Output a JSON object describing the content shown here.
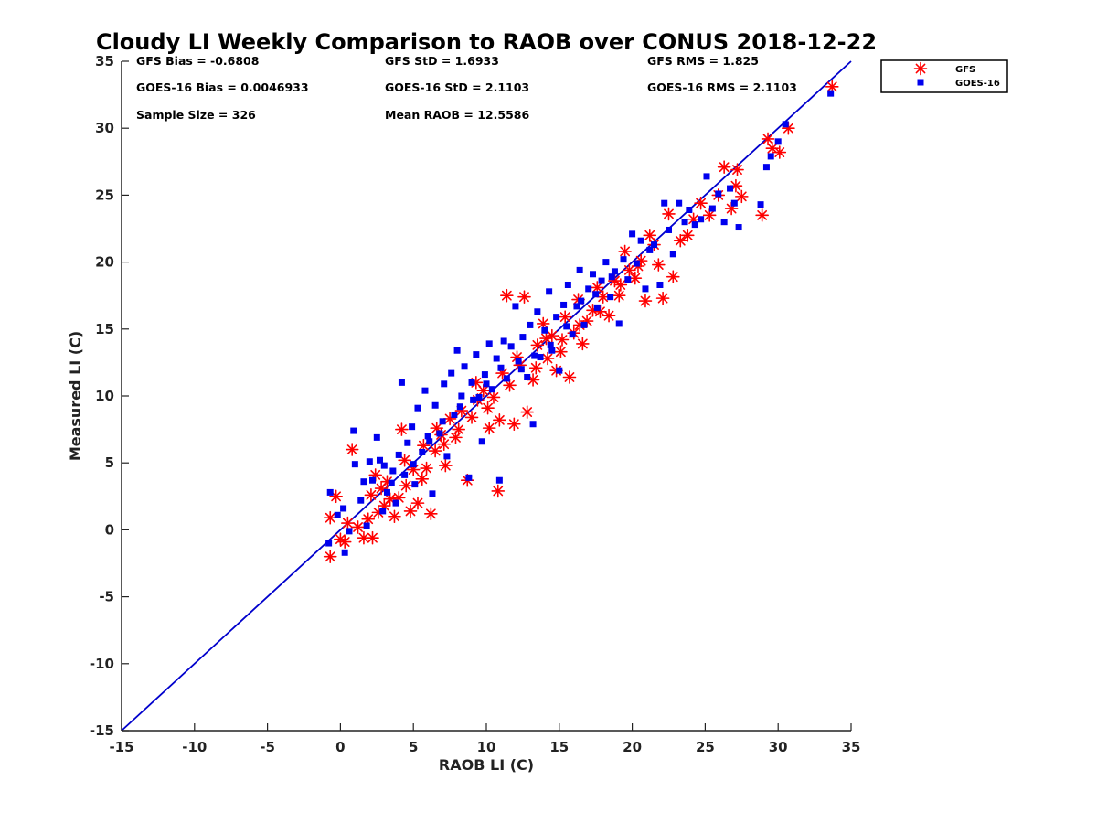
{
  "chart_data": {
    "type": "scatter",
    "title": "Cloudy LI Weekly Comparison to RAOB over CONUS 2018-12-22",
    "xlabel": "RAOB LI (C)",
    "ylabel": "Measured LI (C)",
    "xlim": [
      -15,
      35
    ],
    "ylim": [
      -15,
      35
    ],
    "xticks": [
      "-15",
      "-10",
      "-5",
      "0",
      "5",
      "10",
      "15",
      "20",
      "25",
      "30",
      "35"
    ],
    "yticks": [
      "-15",
      "-10",
      "-5",
      "0",
      "5",
      "10",
      "15",
      "20",
      "25",
      "30",
      "35"
    ],
    "grid": false,
    "legend_position": "outside-top-right",
    "reference_line": {
      "from": [
        -15,
        -15
      ],
      "to": [
        35,
        35
      ],
      "color": "#0000cc"
    },
    "stats": [
      {
        "text": "GFS Bias = -0.6808"
      },
      {
        "text": "GFS StD = 1.6933"
      },
      {
        "text": "GFS RMS = 1.825"
      },
      {
        "text": "GOES-16 Bias = 0.0046933"
      },
      {
        "text": "GOES-16 StD = 2.1103"
      },
      {
        "text": "GOES-16 RMS = 2.1103"
      },
      {
        "text": "Sample Size = 326"
      },
      {
        "text": "Mean RAOB = 12.5586"
      }
    ],
    "series": [
      {
        "name": "GFS",
        "marker": "asterisk",
        "color": "#ff0000",
        "points": [
          [
            -0.7,
            -2.0
          ],
          [
            -0.7,
            0.9
          ],
          [
            -0.3,
            2.5
          ],
          [
            0.0,
            -0.7
          ],
          [
            0.3,
            -0.9
          ],
          [
            0.5,
            0.5
          ],
          [
            0.8,
            6.0
          ],
          [
            1.2,
            0.2
          ],
          [
            1.6,
            -0.6
          ],
          [
            1.9,
            0.8
          ],
          [
            2.1,
            2.6
          ],
          [
            2.2,
            -0.6
          ],
          [
            2.6,
            1.3
          ],
          [
            2.8,
            3.1
          ],
          [
            3.0,
            1.8
          ],
          [
            3.4,
            2.3
          ],
          [
            3.7,
            1.0
          ],
          [
            4.0,
            2.4
          ],
          [
            4.2,
            7.5
          ],
          [
            4.5,
            3.3
          ],
          [
            4.8,
            1.4
          ],
          [
            5.0,
            4.5
          ],
          [
            5.3,
            2.0
          ],
          [
            5.6,
            3.8
          ],
          [
            5.9,
            4.6
          ],
          [
            6.2,
            1.2
          ],
          [
            6.5,
            5.9
          ],
          [
            6.9,
            7.1
          ],
          [
            7.2,
            4.8
          ],
          [
            7.5,
            8.3
          ],
          [
            7.9,
            6.9
          ],
          [
            8.3,
            8.9
          ],
          [
            8.7,
            3.7
          ],
          [
            9.0,
            8.4
          ],
          [
            9.4,
            9.7
          ],
          [
            9.8,
            10.4
          ],
          [
            10.2,
            7.6
          ],
          [
            10.5,
            9.9
          ],
          [
            10.8,
            2.9
          ],
          [
            10.9,
            8.2
          ],
          [
            11.4,
            17.5
          ],
          [
            11.6,
            10.8
          ],
          [
            11.9,
            7.9
          ],
          [
            12.3,
            12.3
          ],
          [
            12.6,
            17.4
          ],
          [
            12.8,
            8.8
          ],
          [
            13.2,
            11.2
          ],
          [
            13.5,
            13.8
          ],
          [
            13.9,
            15.4
          ],
          [
            14.2,
            12.8
          ],
          [
            14.5,
            14.5
          ],
          [
            14.8,
            11.9
          ],
          [
            15.1,
            13.3
          ],
          [
            15.4,
            15.9
          ],
          [
            15.7,
            11.4
          ],
          [
            16.0,
            14.7
          ],
          [
            16.3,
            17.2
          ],
          [
            16.6,
            13.9
          ],
          [
            16.9,
            15.6
          ],
          [
            17.3,
            16.4
          ],
          [
            17.6,
            18.1
          ],
          [
            18.0,
            17.4
          ],
          [
            18.4,
            16.0
          ],
          [
            18.8,
            18.6
          ],
          [
            19.1,
            17.5
          ],
          [
            19.5,
            20.8
          ],
          [
            19.8,
            19.4
          ],
          [
            20.2,
            18.8
          ],
          [
            20.6,
            20.1
          ],
          [
            20.9,
            17.1
          ],
          [
            21.2,
            22.0
          ],
          [
            21.8,
            19.8
          ],
          [
            22.1,
            17.3
          ],
          [
            22.5,
            23.6
          ],
          [
            22.8,
            18.9
          ],
          [
            23.3,
            21.6
          ],
          [
            23.8,
            22.0
          ],
          [
            24.2,
            23.2
          ],
          [
            24.7,
            24.4
          ],
          [
            25.3,
            23.5
          ],
          [
            25.9,
            25.0
          ],
          [
            26.3,
            27.1
          ],
          [
            26.8,
            24.0
          ],
          [
            27.1,
            25.7
          ],
          [
            27.2,
            26.9
          ],
          [
            27.5,
            24.9
          ],
          [
            28.9,
            23.5
          ],
          [
            29.3,
            29.2
          ],
          [
            29.6,
            28.5
          ],
          [
            30.1,
            28.2
          ],
          [
            30.7,
            30.0
          ],
          [
            33.7,
            33.1
          ],
          [
            2.4,
            4.1
          ],
          [
            3.2,
            3.6
          ],
          [
            4.4,
            5.2
          ],
          [
            5.7,
            6.3
          ],
          [
            6.6,
            7.6
          ],
          [
            7.1,
            6.4
          ],
          [
            8.1,
            7.5
          ],
          [
            9.3,
            11.0
          ],
          [
            10.1,
            9.1
          ],
          [
            11.1,
            11.7
          ],
          [
            12.1,
            12.9
          ],
          [
            13.4,
            12.1
          ],
          [
            14.1,
            14.3
          ],
          [
            15.2,
            14.2
          ],
          [
            16.4,
            15.3
          ],
          [
            17.8,
            16.3
          ],
          [
            19.2,
            18.3
          ],
          [
            20.4,
            19.7
          ],
          [
            21.5,
            21.3
          ]
        ]
      },
      {
        "name": "GOES-16",
        "marker": "square",
        "color": "#0000ee",
        "points": [
          [
            -0.8,
            -1.0
          ],
          [
            -0.7,
            2.8
          ],
          [
            -0.2,
            1.1
          ],
          [
            0.2,
            1.6
          ],
          [
            0.3,
            -1.7
          ],
          [
            0.6,
            -0.1
          ],
          [
            0.9,
            7.4
          ],
          [
            1.0,
            4.9
          ],
          [
            1.4,
            2.2
          ],
          [
            1.6,
            3.6
          ],
          [
            1.8,
            0.3
          ],
          [
            2.0,
            5.1
          ],
          [
            2.2,
            3.7
          ],
          [
            2.5,
            6.9
          ],
          [
            2.7,
            5.2
          ],
          [
            3.0,
            4.8
          ],
          [
            3.2,
            2.8
          ],
          [
            3.5,
            3.5
          ],
          [
            3.8,
            2.0
          ],
          [
            4.0,
            5.6
          ],
          [
            4.2,
            11.0
          ],
          [
            4.4,
            4.1
          ],
          [
            4.6,
            6.5
          ],
          [
            4.9,
            7.7
          ],
          [
            5.1,
            3.4
          ],
          [
            5.3,
            9.1
          ],
          [
            5.6,
            5.8
          ],
          [
            5.8,
            10.4
          ],
          [
            6.1,
            6.6
          ],
          [
            6.3,
            2.7
          ],
          [
            6.5,
            9.3
          ],
          [
            6.8,
            7.2
          ],
          [
            7.1,
            10.9
          ],
          [
            7.3,
            5.5
          ],
          [
            7.6,
            11.7
          ],
          [
            7.8,
            8.6
          ],
          [
            8.0,
            13.4
          ],
          [
            8.3,
            10.0
          ],
          [
            8.5,
            12.2
          ],
          [
            8.8,
            3.9
          ],
          [
            9.0,
            11.0
          ],
          [
            9.3,
            13.1
          ],
          [
            9.5,
            9.9
          ],
          [
            9.7,
            6.6
          ],
          [
            9.9,
            11.6
          ],
          [
            10.2,
            13.9
          ],
          [
            10.4,
            10.5
          ],
          [
            10.7,
            12.8
          ],
          [
            10.9,
            3.7
          ],
          [
            11.2,
            14.1
          ],
          [
            11.4,
            11.3
          ],
          [
            11.7,
            13.7
          ],
          [
            12.0,
            16.7
          ],
          [
            12.2,
            12.6
          ],
          [
            12.5,
            14.4
          ],
          [
            12.8,
            11.4
          ],
          [
            13.0,
            15.3
          ],
          [
            13.2,
            7.9
          ],
          [
            13.5,
            16.3
          ],
          [
            13.7,
            12.9
          ],
          [
            14.0,
            14.9
          ],
          [
            14.3,
            17.8
          ],
          [
            14.5,
            13.4
          ],
          [
            14.8,
            15.9
          ],
          [
            15.0,
            11.9
          ],
          [
            15.3,
            16.8
          ],
          [
            15.6,
            18.3
          ],
          [
            15.9,
            14.6
          ],
          [
            16.2,
            16.7
          ],
          [
            16.4,
            19.4
          ],
          [
            16.7,
            15.3
          ],
          [
            17.0,
            18.0
          ],
          [
            17.3,
            19.1
          ],
          [
            17.6,
            16.6
          ],
          [
            17.9,
            18.6
          ],
          [
            18.2,
            20.0
          ],
          [
            18.5,
            17.4
          ],
          [
            18.8,
            19.3
          ],
          [
            19.1,
            15.4
          ],
          [
            19.4,
            20.2
          ],
          [
            19.7,
            18.7
          ],
          [
            20.0,
            22.1
          ],
          [
            20.3,
            19.9
          ],
          [
            20.6,
            21.6
          ],
          [
            20.9,
            18.0
          ],
          [
            21.2,
            20.9
          ],
          [
            21.5,
            21.3
          ],
          [
            21.9,
            18.3
          ],
          [
            22.2,
            24.4
          ],
          [
            22.5,
            22.4
          ],
          [
            22.8,
            20.6
          ],
          [
            23.2,
            24.4
          ],
          [
            23.6,
            23.0
          ],
          [
            23.9,
            23.9
          ],
          [
            24.3,
            22.8
          ],
          [
            24.7,
            23.2
          ],
          [
            25.1,
            26.4
          ],
          [
            25.5,
            24.0
          ],
          [
            25.9,
            25.1
          ],
          [
            26.3,
            23.0
          ],
          [
            26.7,
            25.5
          ],
          [
            27.0,
            24.4
          ],
          [
            27.3,
            22.6
          ],
          [
            28.8,
            24.3
          ],
          [
            29.2,
            27.1
          ],
          [
            29.5,
            27.9
          ],
          [
            30.0,
            29.0
          ],
          [
            30.5,
            30.3
          ],
          [
            33.6,
            32.6
          ],
          [
            2.9,
            1.4
          ],
          [
            3.6,
            4.4
          ],
          [
            5.0,
            4.9
          ],
          [
            6.0,
            7.0
          ],
          [
            7.0,
            8.1
          ],
          [
            8.2,
            9.2
          ],
          [
            9.1,
            9.7
          ],
          [
            10.0,
            10.9
          ],
          [
            11.0,
            12.1
          ],
          [
            12.4,
            12.0
          ],
          [
            13.3,
            13.0
          ],
          [
            14.4,
            13.8
          ],
          [
            15.5,
            15.2
          ],
          [
            16.5,
            17.1
          ],
          [
            17.5,
            17.6
          ],
          [
            18.6,
            18.9
          ]
        ]
      }
    ]
  }
}
